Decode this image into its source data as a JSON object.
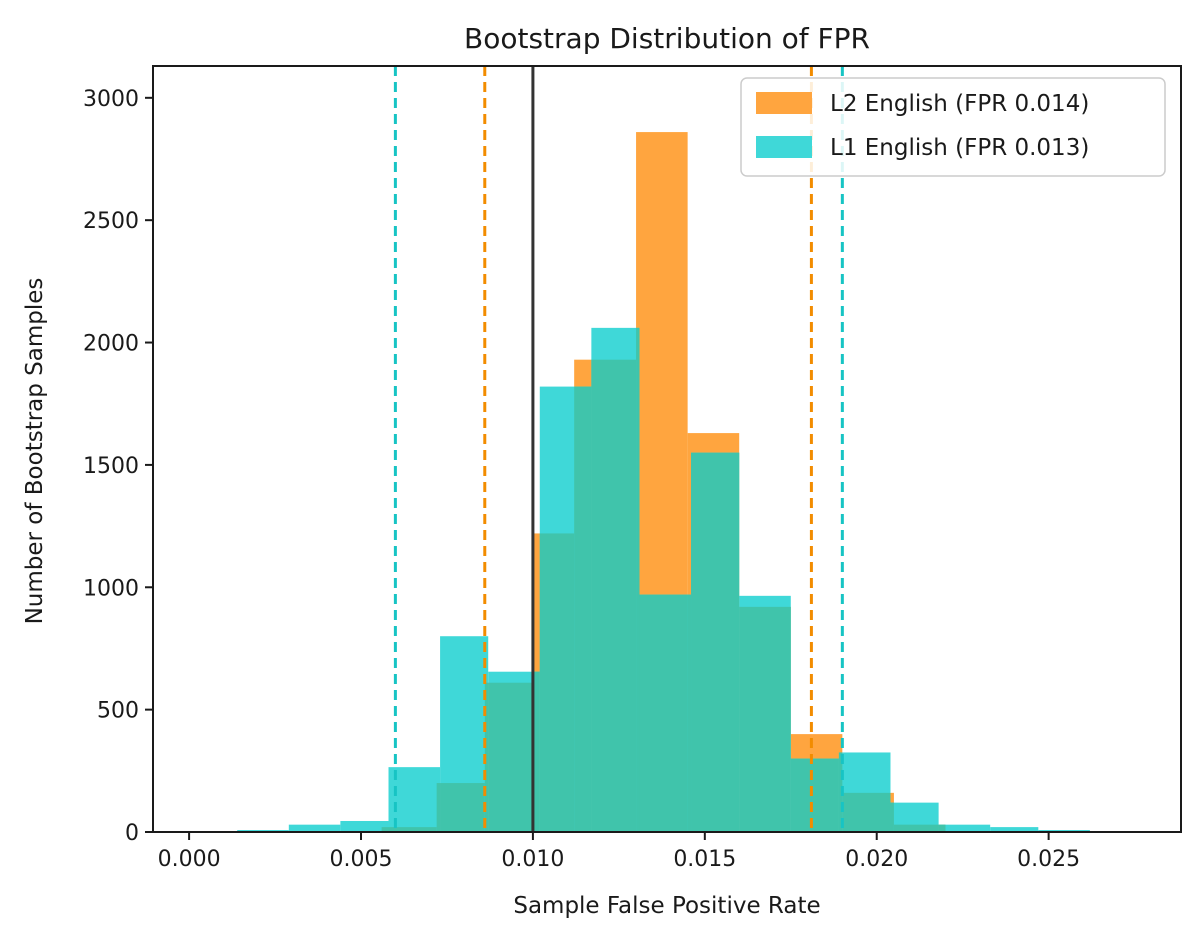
{
  "chart_data": {
    "type": "histogram",
    "title": "Bootstrap Distribution of FPR",
    "xlabel": "Sample False Positive Rate",
    "ylabel": "Number of Bootstrap Samples",
    "xlim": [
      -0.00105,
      0.02885
    ],
    "ylim": [
      0,
      3130
    ],
    "xticks": [
      0.0,
      0.005,
      0.01,
      0.015,
      0.02,
      0.025
    ],
    "xtick_labels": [
      "0.000",
      "0.005",
      "0.010",
      "0.015",
      "0.020",
      "0.025"
    ],
    "yticks": [
      0,
      500,
      1000,
      1500,
      2000,
      2500,
      3000
    ],
    "ytick_labels": [
      "0",
      "500",
      "1000",
      "1500",
      "2000",
      "2500",
      "3000"
    ],
    "grid": false,
    "legend_position": "top-right",
    "series": [
      {
        "name": "L2 English (FPR 0.014)",
        "color": "#ffa53f",
        "bins": [
          {
            "x0": 0.001,
            "x1": 0.0025,
            "count": 0
          },
          {
            "x0": 0.0025,
            "x1": 0.0041,
            "count": 0
          },
          {
            "x0": 0.0041,
            "x1": 0.0056,
            "count": 0
          },
          {
            "x0": 0.0056,
            "x1": 0.0072,
            "count": 20
          },
          {
            "x0": 0.0072,
            "x1": 0.0086,
            "count": 200
          },
          {
            "x0": 0.0086,
            "x1": 0.01,
            "count": 610
          },
          {
            "x0": 0.01,
            "x1": 0.0112,
            "count": 1220
          },
          {
            "x0": 0.0112,
            "x1": 0.013,
            "count": 1930
          },
          {
            "x0": 0.013,
            "x1": 0.0145,
            "count": 2860
          },
          {
            "x0": 0.0145,
            "x1": 0.016,
            "count": 1630
          },
          {
            "x0": 0.016,
            "x1": 0.0175,
            "count": 920
          },
          {
            "x0": 0.0175,
            "x1": 0.019,
            "count": 400
          },
          {
            "x0": 0.019,
            "x1": 0.0205,
            "count": 160
          },
          {
            "x0": 0.0205,
            "x1": 0.022,
            "count": 30
          },
          {
            "x0": 0.022,
            "x1": 0.0235,
            "count": 0
          }
        ],
        "ci_lines": [
          0.0086,
          0.0181
        ]
      },
      {
        "name": "L1 English (FPR 0.013)",
        "color": "#3fd8d8",
        "bins": [
          {
            "x0": 0.0014,
            "x1": 0.0029,
            "count": 8
          },
          {
            "x0": 0.0029,
            "x1": 0.0044,
            "count": 30
          },
          {
            "x0": 0.0044,
            "x1": 0.0058,
            "count": 45
          },
          {
            "x0": 0.0058,
            "x1": 0.0073,
            "count": 265
          },
          {
            "x0": 0.0073,
            "x1": 0.0087,
            "count": 800
          },
          {
            "x0": 0.0087,
            "x1": 0.0102,
            "count": 655
          },
          {
            "x0": 0.0102,
            "x1": 0.0117,
            "count": 1820
          },
          {
            "x0": 0.0117,
            "x1": 0.0131,
            "count": 2060
          },
          {
            "x0": 0.0131,
            "x1": 0.0146,
            "count": 970
          },
          {
            "x0": 0.0146,
            "x1": 0.016,
            "count": 1550
          },
          {
            "x0": 0.016,
            "x1": 0.0175,
            "count": 965
          },
          {
            "x0": 0.0175,
            "x1": 0.0189,
            "count": 300
          },
          {
            "x0": 0.0189,
            "x1": 0.0204,
            "count": 325
          },
          {
            "x0": 0.0204,
            "x1": 0.0218,
            "count": 120
          },
          {
            "x0": 0.0218,
            "x1": 0.0233,
            "count": 30
          },
          {
            "x0": 0.0233,
            "x1": 0.0247,
            "count": 20
          },
          {
            "x0": 0.0247,
            "x1": 0.0262,
            "count": 8
          }
        ],
        "ci_lines": [
          0.006,
          0.019
        ]
      }
    ],
    "overlap_color": "#40c4ab",
    "reference_line": {
      "x": 0.01,
      "color": "#333333"
    }
  }
}
